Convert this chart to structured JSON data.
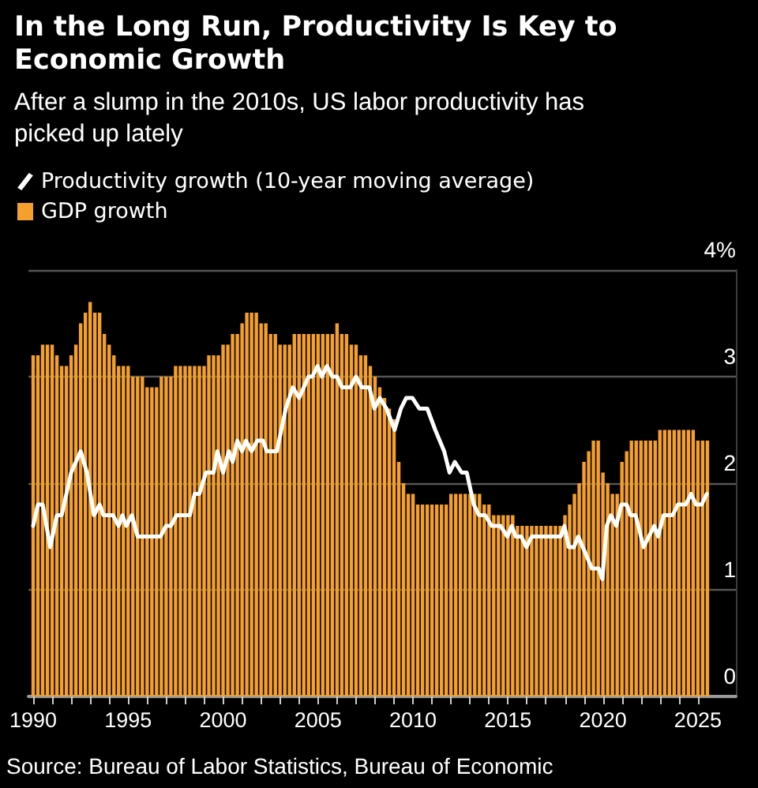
{
  "chart_data": {
    "type": "bar",
    "title": "In the Long Run, Productivity Is Key to Economic Growth",
    "subtitle": "After a slump in the 2010s, US labor productivity has picked up lately",
    "annotations": [
      "Source: Bureau of Labor Statistics, Bureau of Economic"
    ],
    "legend": "top left",
    "grid": "y",
    "xlim": [
      1989.75,
      2027
    ],
    "xticks": [
      1990,
      {
        "value": 1991,
        "label": null
      },
      {
        "value": 1992,
        "label": null
      },
      {
        "value": 1993,
        "label": null
      },
      {
        "value": 1994,
        "label": null
      },
      1995,
      {
        "value": 1996,
        "label": null
      },
      {
        "value": 1997,
        "label": null
      },
      {
        "value": 1998,
        "label": null
      },
      {
        "value": 1999,
        "label": null
      },
      2000,
      {
        "value": 2001,
        "label": null
      },
      {
        "value": 2002,
        "label": null
      },
      {
        "value": 2003,
        "label": null
      },
      {
        "value": 2004,
        "label": null
      },
      2005,
      {
        "value": 2006,
        "label": null
      },
      {
        "value": 2007,
        "label": null
      },
      {
        "value": 2008,
        "label": null
      },
      {
        "value": 2009,
        "label": null
      },
      2010,
      {
        "value": 2011,
        "label": null
      },
      {
        "value": 2012,
        "label": null
      },
      {
        "value": 2013,
        "label": null
      },
      {
        "value": 2014,
        "label": null
      },
      2015,
      {
        "value": 2016,
        "label": null
      },
      {
        "value": 2017,
        "label": null
      },
      {
        "value": 2018,
        "label": null
      },
      {
        "value": 2019,
        "label": null
      },
      2020,
      {
        "value": 2021,
        "label": null
      },
      {
        "value": 2022,
        "label": null
      },
      {
        "value": 2023,
        "label": null
      },
      {
        "value": 2024,
        "label": null
      },
      2025
    ],
    "ylim": [
      0,
      4
    ],
    "yticks": [
      0,
      1,
      2,
      3,
      {
        "value": 4,
        "label": "4%"
      }
    ],
    "series": [
      {
        "name": "Productivity growth (10-year moving average)",
        "type": "line",
        "color": "#ffffff",
        "marker": "none",
        "line_style": "solid",
        "x": [
          1990.0,
          1990.25,
          1990.5,
          1990.9,
          1991.25,
          1991.5,
          1992.0,
          1992.5,
          1992.83,
          1993.2,
          1993.5,
          1993.7,
          1994.2,
          1994.5,
          1994.7,
          1994.9,
          1995.2,
          1995.5,
          1996.7,
          1997.0,
          1997.25,
          1997.55,
          1998.25,
          1998.5,
          1998.75,
          1999.1,
          1999.5,
          1999.7,
          2000.0,
          2000.3,
          2000.5,
          2000.75,
          2001.0,
          2001.2,
          2001.5,
          2001.8,
          2002.1,
          2002.3,
          2002.83,
          2003.3,
          2003.67,
          2004.0,
          2004.5,
          2004.7,
          2004.97,
          2005.2,
          2005.47,
          2005.75,
          2006.0,
          2006.25,
          2006.7,
          2007.0,
          2007.3,
          2007.7,
          2007.97,
          2008.25,
          2008.6,
          2009.03,
          2009.36,
          2009.64,
          2009.97,
          2010.33,
          2010.75,
          2011.17,
          2011.64,
          2011.92,
          2012.2,
          2012.56,
          2012.83,
          2013.2,
          2013.47,
          2013.8,
          2014.14,
          2014.6,
          2014.97,
          2015.2,
          2015.4,
          2015.7,
          2015.97,
          2016.25,
          2017.78,
          2017.97,
          2018.2,
          2018.47,
          2018.7,
          2018.94,
          2019.42,
          2019.78,
          2019.97,
          2020.2,
          2020.42,
          2020.7,
          2020.97,
          2021.25,
          2021.45,
          2021.72,
          2022.14,
          2022.42,
          2022.7,
          2022.9,
          2023.2,
          2023.67,
          2023.95,
          2024.36,
          2024.64,
          2024.9,
          2025.2,
          2025.47
        ],
        "values": [
          1.6,
          1.8,
          1.8,
          1.4,
          1.7,
          1.7,
          2.1,
          2.3,
          2.1,
          1.7,
          1.8,
          1.7,
          1.7,
          1.6,
          1.7,
          1.6,
          1.7,
          1.5,
          1.5,
          1.6,
          1.6,
          1.7,
          1.7,
          1.9,
          1.9,
          2.1,
          2.1,
          2.3,
          2.1,
          2.3,
          2.2,
          2.4,
          2.3,
          2.4,
          2.3,
          2.4,
          2.4,
          2.3,
          2.3,
          2.7,
          2.9,
          2.8,
          3.0,
          3.0,
          3.1,
          3.0,
          3.1,
          3.0,
          3.0,
          2.9,
          2.9,
          3.0,
          2.9,
          2.9,
          2.7,
          2.8,
          2.7,
          2.5,
          2.7,
          2.8,
          2.8,
          2.7,
          2.7,
          2.5,
          2.3,
          2.1,
          2.2,
          2.1,
          2.1,
          1.8,
          1.7,
          1.7,
          1.6,
          1.6,
          1.5,
          1.6,
          1.5,
          1.5,
          1.4,
          1.5,
          1.5,
          1.6,
          1.4,
          1.4,
          1.5,
          1.4,
          1.2,
          1.2,
          1.1,
          1.6,
          1.7,
          1.6,
          1.8,
          1.8,
          1.7,
          1.7,
          1.4,
          1.5,
          1.6,
          1.5,
          1.7,
          1.7,
          1.8,
          1.8,
          1.9,
          1.8,
          1.8,
          1.9
        ]
      },
      {
        "name": "GDP growth",
        "color": "#f5a02c",
        "x": [
          1990,
          1990.25,
          1990.5,
          1990.75,
          1991,
          1991.25,
          1991.5,
          1991.75,
          1992,
          1992.25,
          1992.5,
          1992.75,
          1993,
          1993.25,
          1993.5,
          1993.75,
          1994,
          1994.25,
          1994.5,
          1994.75,
          1995,
          1995.25,
          1995.5,
          1995.75,
          1996,
          1996.25,
          1996.5,
          1996.75,
          1997,
          1997.25,
          1997.5,
          1997.75,
          1998,
          1998.25,
          1998.5,
          1998.75,
          1999,
          1999.25,
          1999.5,
          1999.75,
          2000,
          2000.25,
          2000.5,
          2000.75,
          2001,
          2001.25,
          2001.5,
          2001.75,
          2002,
          2002.25,
          2002.5,
          2002.75,
          2003,
          2003.25,
          2003.5,
          2003.75,
          2004,
          2004.25,
          2004.5,
          2004.75,
          2005,
          2005.25,
          2005.5,
          2005.75,
          2006,
          2006.25,
          2006.5,
          2006.75,
          2007,
          2007.25,
          2007.5,
          2007.75,
          2008,
          2008.25,
          2008.5,
          2008.75,
          2009,
          2009.25,
          2009.5,
          2009.75,
          2010,
          2010.25,
          2010.5,
          2010.75,
          2011,
          2011.25,
          2011.5,
          2011.75,
          2012,
          2012.25,
          2012.5,
          2012.75,
          2013,
          2013.25,
          2013.5,
          2013.75,
          2014,
          2014.25,
          2014.5,
          2014.75,
          2015,
          2015.25,
          2015.5,
          2015.75,
          2016,
          2016.25,
          2016.5,
          2016.75,
          2017,
          2017.25,
          2017.5,
          2017.75,
          2018,
          2018.25,
          2018.5,
          2018.75,
          2019,
          2019.25,
          2019.5,
          2019.75,
          2020,
          2020.25,
          2020.5,
          2020.75,
          2021,
          2021.25,
          2021.5,
          2021.75,
          2022,
          2022.25,
          2022.5,
          2022.75,
          2023,
          2023.25,
          2023.5,
          2023.75,
          2024,
          2024.25,
          2024.5,
          2024.75,
          2025,
          2025.25,
          2025.5
        ],
        "values": [
          3.2,
          3.2,
          3.3,
          3.3,
          3.3,
          3.2,
          3.1,
          3.1,
          3.2,
          3.3,
          3.5,
          3.6,
          3.7,
          3.6,
          3.6,
          3.4,
          3.3,
          3.2,
          3.1,
          3.1,
          3.1,
          3.0,
          3.0,
          3.0,
          2.9,
          2.9,
          2.9,
          3.0,
          3.0,
          3.0,
          3.1,
          3.1,
          3.1,
          3.1,
          3.1,
          3.1,
          3.1,
          3.2,
          3.2,
          3.2,
          3.3,
          3.3,
          3.4,
          3.4,
          3.5,
          3.6,
          3.6,
          3.6,
          3.5,
          3.5,
          3.4,
          3.4,
          3.3,
          3.3,
          3.3,
          3.4,
          3.4,
          3.4,
          3.4,
          3.4,
          3.4,
          3.4,
          3.4,
          3.4,
          3.5,
          3.4,
          3.4,
          3.3,
          3.3,
          3.2,
          3.2,
          3.1,
          3.0,
          2.9,
          2.8,
          2.7,
          2.6,
          2.2,
          2.0,
          1.9,
          1.9,
          1.8,
          1.8,
          1.8,
          1.8,
          1.8,
          1.8,
          1.8,
          1.9,
          1.9,
          1.9,
          1.9,
          1.9,
          1.9,
          1.9,
          1.8,
          1.8,
          1.7,
          1.7,
          1.7,
          1.7,
          1.7,
          1.6,
          1.6,
          1.6,
          1.6,
          1.6,
          1.6,
          1.6,
          1.6,
          1.6,
          1.6,
          1.7,
          1.8,
          1.9,
          2.0,
          2.2,
          2.3,
          2.4,
          2.4,
          2.1,
          2.0,
          1.9,
          1.9,
          2.2,
          2.3,
          2.4,
          2.4,
          2.4,
          2.4,
          2.4,
          2.4,
          2.5,
          2.5,
          2.5,
          2.5,
          2.5,
          2.5,
          2.5,
          2.5,
          2.4,
          2.4,
          2.4
        ]
      }
    ]
  }
}
